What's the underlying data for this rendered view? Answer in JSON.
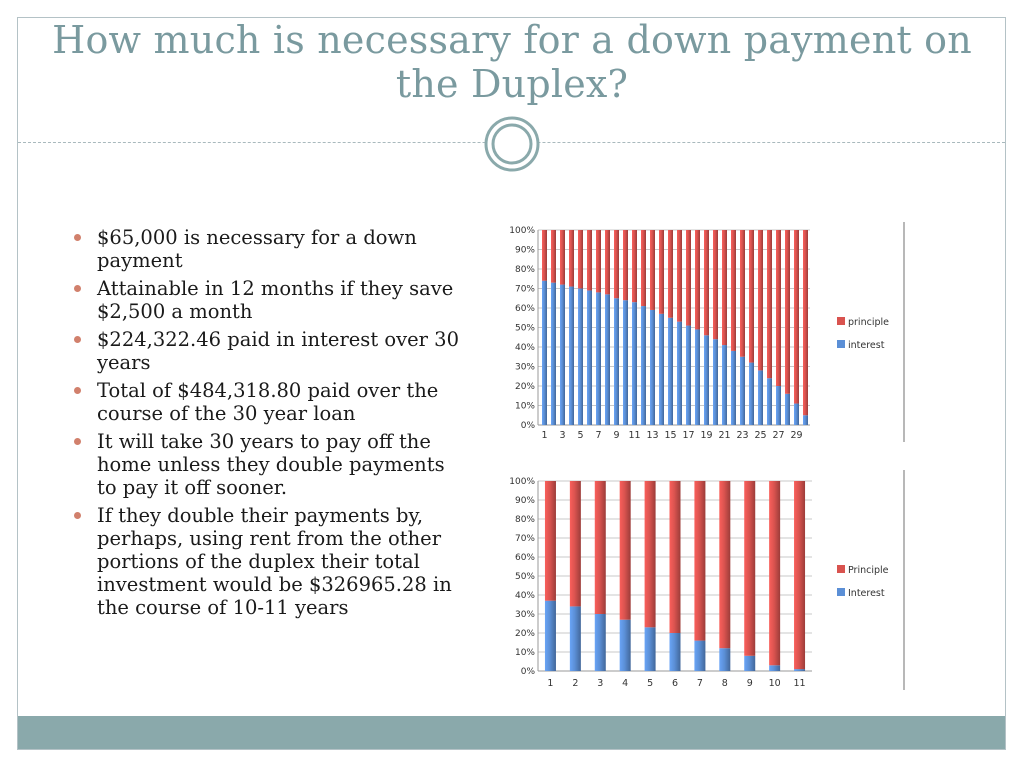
{
  "slide": {
    "title": "How much is necessary for a down payment on the Duplex?",
    "bullets": [
      "$65,000 is necessary for a down payment",
      "Attainable in 12 months if they save $2,500 a month",
      "$224,322.46 paid in interest over 30 years",
      "Total of $484,318.80  paid over the course of the 30 year loan",
      "It will take 30 years to pay off the home unless they double payments to pay it off sooner.",
      "If they double their payments by, perhaps, using rent from the other portions of the duplex their total investment would be $326965.28  in the course of 10-11 years"
    ]
  },
  "colors": {
    "title": "#7a9a9f",
    "bullet_marker": "#d1806c",
    "footer_bar": "#8aa9ab",
    "principle_series": "#d9534f",
    "interest_series": "#5b8fd6"
  },
  "chart_data": [
    {
      "type": "bar",
      "stacked": "percent",
      "title": "",
      "xlabel": "",
      "ylabel": "",
      "ylim": [
        0,
        100
      ],
      "yticks": [
        "0%",
        "10%",
        "20%",
        "30%",
        "40%",
        "50%",
        "60%",
        "70%",
        "80%",
        "90%",
        "100%"
      ],
      "categories": [
        1,
        2,
        3,
        4,
        5,
        6,
        7,
        8,
        9,
        10,
        11,
        12,
        13,
        14,
        15,
        16,
        17,
        18,
        19,
        20,
        21,
        22,
        23,
        24,
        25,
        26,
        27,
        28,
        29,
        30
      ],
      "xtick_labels": [
        "1",
        "3",
        "5",
        "7",
        "9",
        "11",
        "13",
        "15",
        "17",
        "19",
        "21",
        "23",
        "25",
        "27",
        "29"
      ],
      "legend_position": "right",
      "series": [
        {
          "name": "principle",
          "color": "#d9534f",
          "values": [
            26,
            27,
            28,
            29,
            30,
            31,
            32,
            33,
            35,
            36,
            37,
            39,
            41,
            43,
            45,
            47,
            49,
            51,
            54,
            56,
            59,
            62,
            65,
            68,
            72,
            76,
            80,
            84,
            89,
            95
          ]
        },
        {
          "name": "interest",
          "color": "#5b8fd6",
          "values": [
            74,
            73,
            72,
            71,
            70,
            69,
            68,
            67,
            65,
            64,
            63,
            61,
            59,
            57,
            55,
            53,
            51,
            49,
            46,
            44,
            41,
            38,
            35,
            32,
            28,
            24,
            20,
            16,
            11,
            5
          ]
        }
      ],
      "grid": true
    },
    {
      "type": "bar",
      "stacked": "percent",
      "title": "",
      "xlabel": "",
      "ylabel": "",
      "ylim": [
        0,
        100
      ],
      "yticks": [
        "0%",
        "10%",
        "20%",
        "30%",
        "40%",
        "50%",
        "60%",
        "70%",
        "80%",
        "90%",
        "100%"
      ],
      "categories": [
        "1",
        "2",
        "3",
        "4",
        "5",
        "6",
        "7",
        "8",
        "9",
        "10",
        "11"
      ],
      "legend_position": "right",
      "series": [
        {
          "name": "Principle",
          "color": "#d9534f",
          "values": [
            63,
            66,
            70,
            73,
            77,
            80,
            84,
            88,
            92,
            97,
            99
          ]
        },
        {
          "name": "Interest",
          "color": "#5b8fd6",
          "values": [
            37,
            34,
            30,
            27,
            23,
            20,
            16,
            12,
            8,
            3,
            1
          ]
        }
      ],
      "grid": true
    }
  ]
}
